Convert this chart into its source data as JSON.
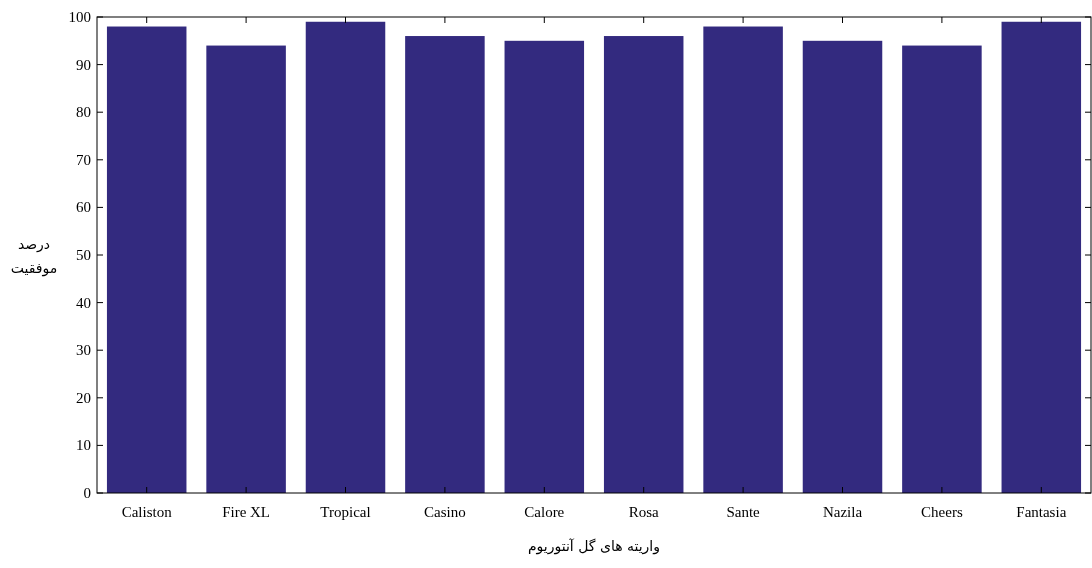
{
  "chart_data": {
    "type": "bar",
    "xlabel": "واریته های گل آنتوریوم",
    "ylabel": "درصد موفقیت",
    "categories": [
      "Caliston",
      "Fire XL",
      "Tropical",
      "Casino",
      "Calore",
      "Rosa",
      "Sante",
      "Nazila",
      "Cheers",
      "Fantasia"
    ],
    "values": [
      98,
      94,
      99,
      96,
      95,
      96,
      98,
      95,
      94,
      99
    ],
    "color": "#332a7f",
    "ylim": [
      0,
      100
    ],
    "yticks": [
      0,
      10,
      20,
      30,
      40,
      50,
      60,
      70,
      80,
      90,
      100
    ],
    "grid": false
  }
}
